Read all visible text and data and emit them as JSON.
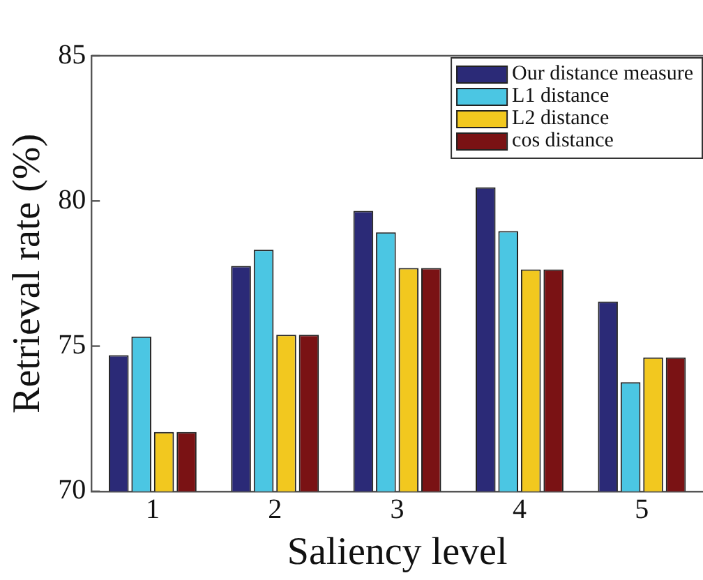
{
  "chart_data": {
    "type": "bar",
    "xlabel": "Saliency level",
    "ylabel": "Retrieval rate (%)",
    "categories": [
      "1",
      "2",
      "3",
      "4",
      "5"
    ],
    "series": [
      {
        "name": "Our distance measure",
        "color": "#2b2a77",
        "values": [
          74.69,
          77.76,
          79.66,
          80.47,
          76.54
        ]
      },
      {
        "name": "L1 distance",
        "color": "#4bc6e3",
        "values": [
          75.33,
          78.32,
          78.92,
          78.96,
          73.76
        ]
      },
      {
        "name": "L2 distance",
        "color": "#f2c81f",
        "values": [
          72.04,
          75.39,
          77.69,
          77.64,
          74.61
        ]
      },
      {
        "name": "cos distance",
        "color": "#7a1214",
        "values": [
          72.04,
          75.39,
          77.69,
          77.64,
          74.61
        ]
      }
    ],
    "ylim": [
      70,
      85
    ],
    "yticks": [
      70,
      75,
      80,
      85
    ],
    "grid": false,
    "legend": "top right"
  }
}
